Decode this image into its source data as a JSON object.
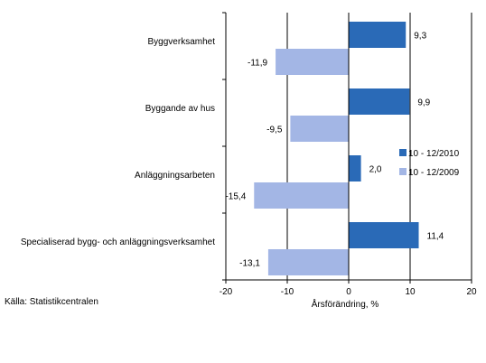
{
  "chart_data": {
    "type": "bar",
    "orientation": "horizontal",
    "categories": [
      "Byggverksamhet",
      "Byggande av hus",
      "Anläggningsarbeten",
      "Specialiserad bygg- och anläggningsverksamhet"
    ],
    "series": [
      {
        "name": "10 - 12/2010",
        "values": [
          9.3,
          9.9,
          2.0,
          11.4
        ],
        "labels": [
          "9,3",
          "9,9",
          "2,0",
          "11,4"
        ],
        "color": "#2a6ab7"
      },
      {
        "name": "10 - 12/2009",
        "values": [
          -11.9,
          -9.5,
          -15.4,
          -13.1
        ],
        "labels": [
          "-11,9",
          "-9,5",
          "-15,4",
          "-13,1"
        ],
        "color": "#a3b6e5"
      }
    ],
    "xlabel": "Årsförändring, %",
    "xlim": [
      -20,
      20
    ],
    "xticks": [
      -20,
      -10,
      0,
      10,
      20
    ],
    "xtick_labels": [
      "-20",
      "-10",
      "0",
      "10",
      "20"
    ],
    "grid": "vertical",
    "legend_position": "right",
    "title": ""
  },
  "source": "Källa: Statistikcentralen"
}
